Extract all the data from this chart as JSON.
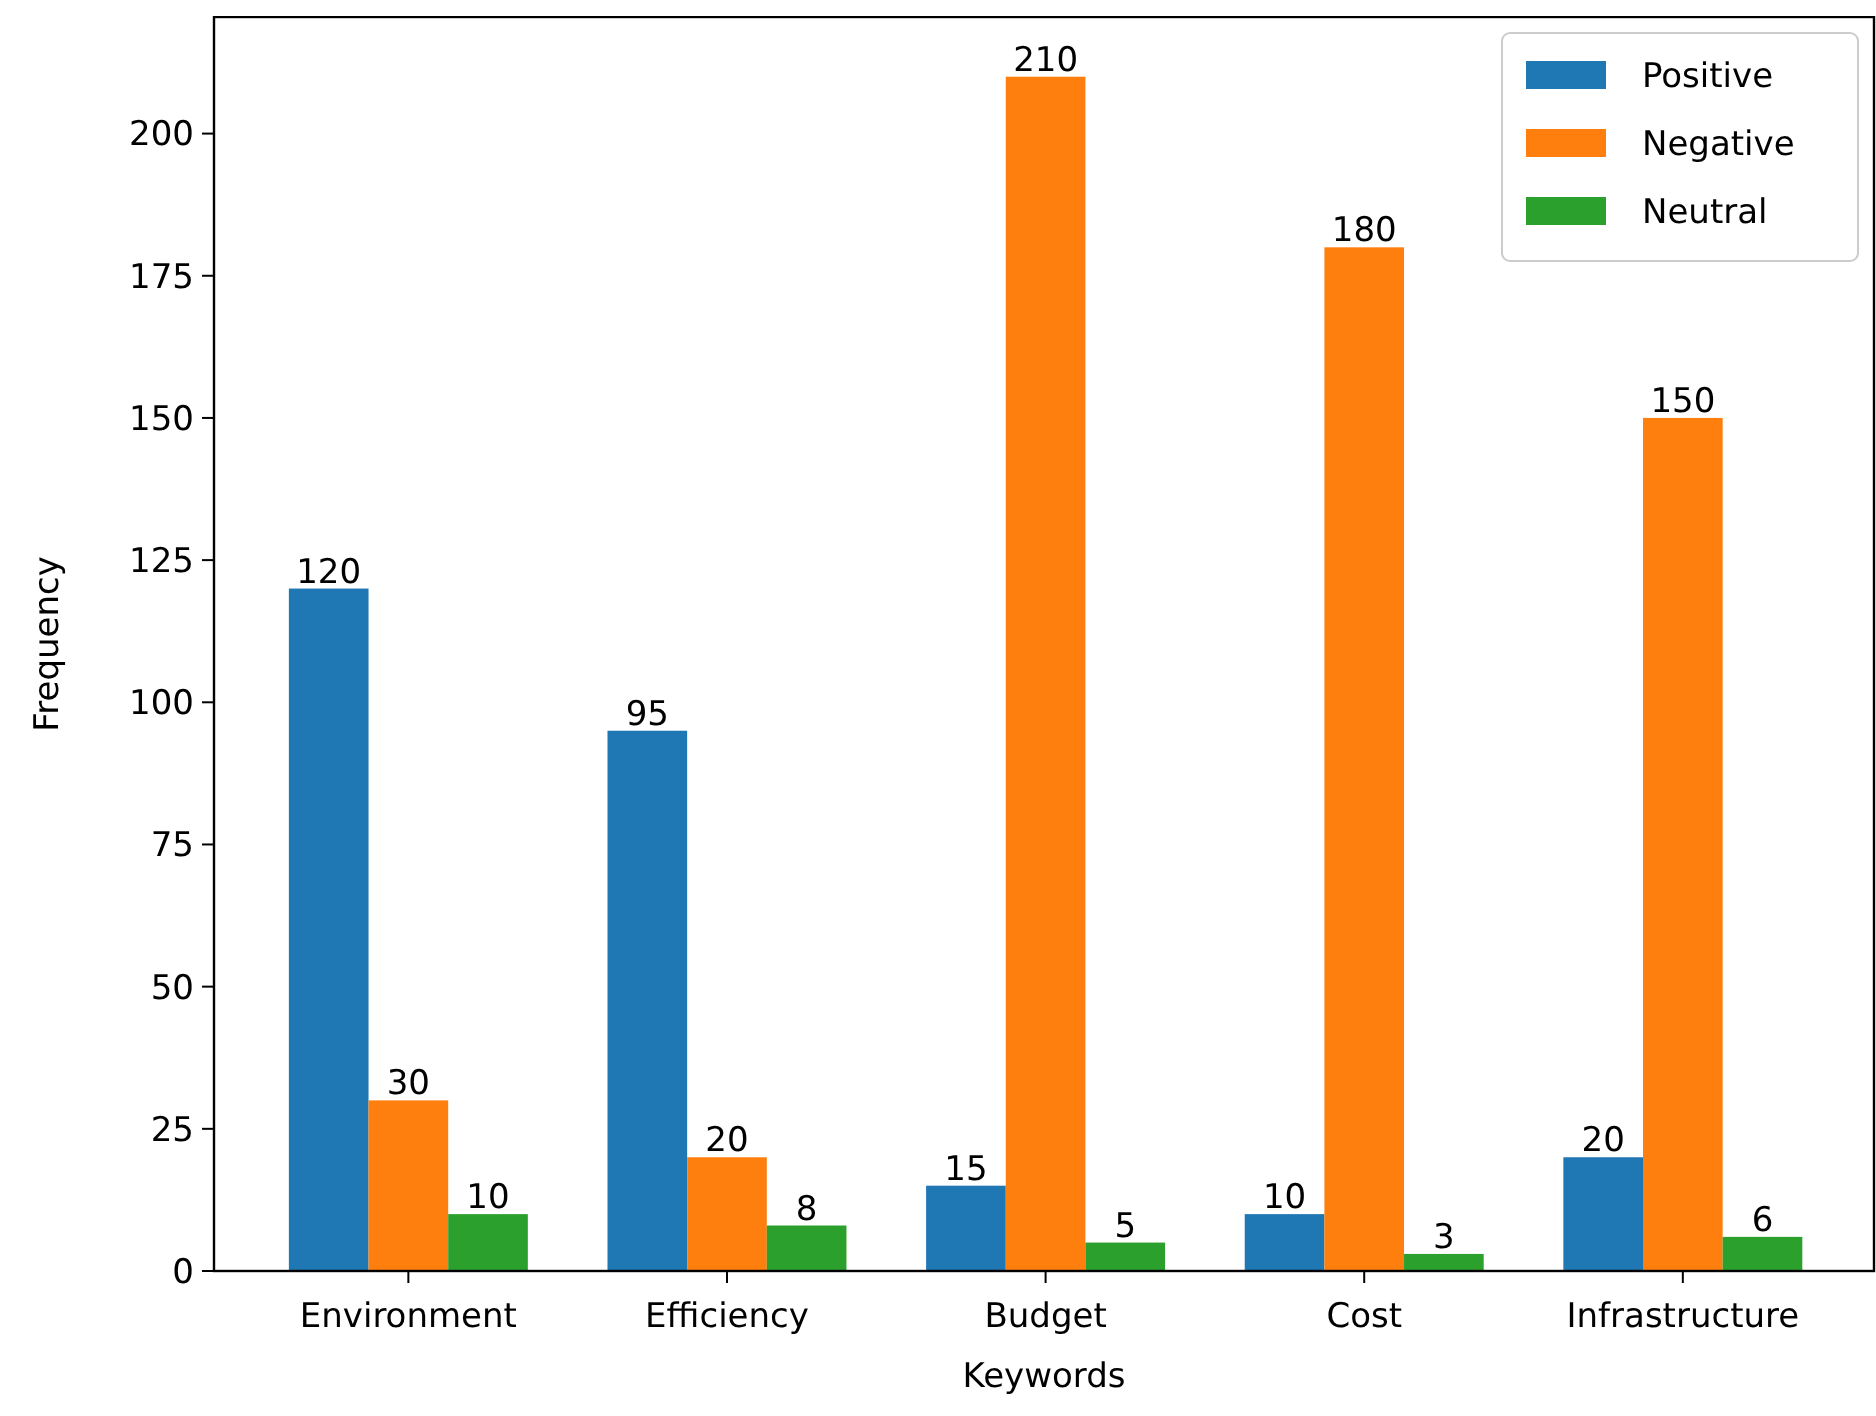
{
  "chart_data": {
    "type": "bar",
    "xlabel": "Keywords",
    "ylabel": "Frequency",
    "categories": [
      "Environment",
      "Efficiency",
      "Budget",
      "Cost",
      "Infrastructure"
    ],
    "series": [
      {
        "name": "Positive",
        "color": "#1f77b4",
        "values": [
          120,
          95,
          15,
          10,
          20
        ]
      },
      {
        "name": "Negative",
        "color": "#ff7f0e",
        "values": [
          30,
          20,
          210,
          180,
          150
        ]
      },
      {
        "name": "Neutral",
        "color": "#2ca02c",
        "values": [
          10,
          8,
          5,
          3,
          6
        ]
      }
    ],
    "ylim": [
      0,
      220.5
    ],
    "yticks": [
      0,
      25,
      50,
      75,
      100,
      125,
      150,
      175,
      200
    ],
    "data_labels": true,
    "legend": "top right",
    "grid": false
  }
}
